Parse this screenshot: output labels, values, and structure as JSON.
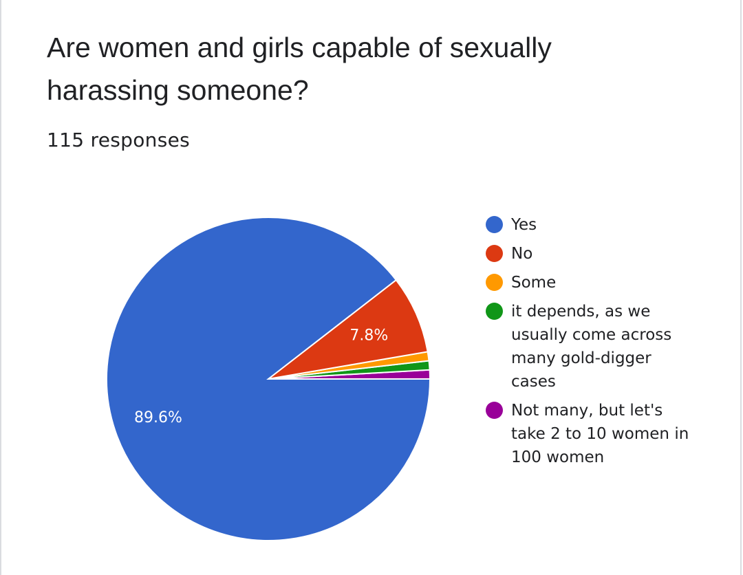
{
  "question": {
    "title": "Are women and girls capable of sexually harassing someone?",
    "response_count": "115 responses"
  },
  "chart_data": {
    "type": "pie",
    "title": "Are women and girls capable of sexually harassing someone?",
    "categories": [
      "Yes",
      "No",
      "Some",
      "it depends, as we usually come across many gold-digger cases",
      "Not many, but let's take 2 to 10 women in 100 women"
    ],
    "values": [
      89.6,
      7.8,
      0.9,
      0.9,
      0.9
    ],
    "counts": [
      103,
      9,
      1,
      1,
      1
    ],
    "data_labels": [
      "89.6%",
      "7.8%",
      "",
      "",
      ""
    ],
    "colors": [
      "#3366cc",
      "#dc3912",
      "#ff9900",
      "#109618",
      "#990099"
    ],
    "legend_position": "right",
    "start": "3 o'clock, counter-clockwise"
  }
}
